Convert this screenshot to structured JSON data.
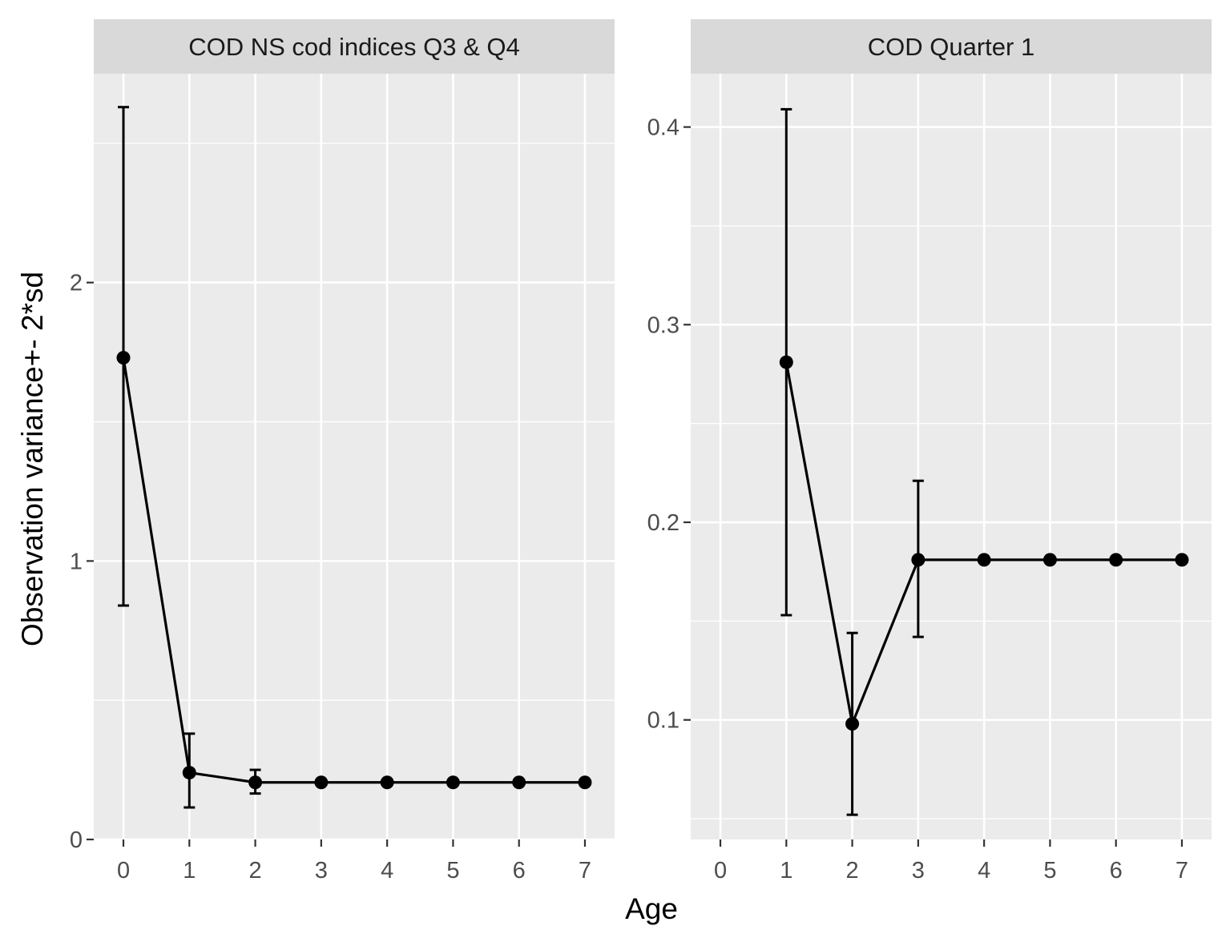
{
  "chart_data": {
    "type": "line",
    "xlabel": "Age",
    "ylabel": "Observation variance+- 2*sd",
    "grid": true,
    "legend": "none",
    "colors": {
      "panel_bg": "#EBEBEB",
      "strip_bg": "#D9D9D9",
      "grid": "#FFFFFF",
      "series": "#000000",
      "tick_text": "#4D4D4D"
    },
    "panels": [
      {
        "title": "COD NS cod indices Q3 & Q4",
        "x": [
          0,
          1,
          2,
          3,
          4,
          5,
          6,
          7
        ],
        "xlim": [
          -0.45,
          7.45
        ],
        "ylim": [
          0,
          2.75
        ],
        "yticks": [
          0,
          1,
          2
        ],
        "yticks_minor": [
          0.5,
          1.5,
          2.5
        ],
        "y": [
          1.73,
          0.24,
          0.205,
          0.205,
          0.205,
          0.205,
          0.205,
          0.205
        ],
        "y_low": [
          0.84,
          0.115,
          0.165,
          null,
          null,
          null,
          null,
          null
        ],
        "y_high": [
          2.63,
          0.38,
          0.25,
          null,
          null,
          null,
          null,
          null
        ]
      },
      {
        "title": "COD Quarter 1",
        "x": [
          0,
          1,
          2,
          3,
          4,
          5,
          6,
          7
        ],
        "xlim": [
          -0.45,
          7.45
        ],
        "ylim": [
          0.0395,
          0.427
        ],
        "yticks": [
          0.1,
          0.2,
          0.3,
          0.4
        ],
        "yticks_minor": [
          0.05,
          0.15,
          0.25,
          0.35
        ],
        "y": [
          null,
          0.281,
          0.098,
          0.181,
          0.181,
          0.181,
          0.181,
          0.181
        ],
        "y_low": [
          null,
          0.153,
          0.052,
          0.142,
          null,
          null,
          null,
          null
        ],
        "y_high": [
          null,
          0.409,
          0.144,
          0.221,
          null,
          null,
          null,
          null
        ]
      }
    ]
  }
}
